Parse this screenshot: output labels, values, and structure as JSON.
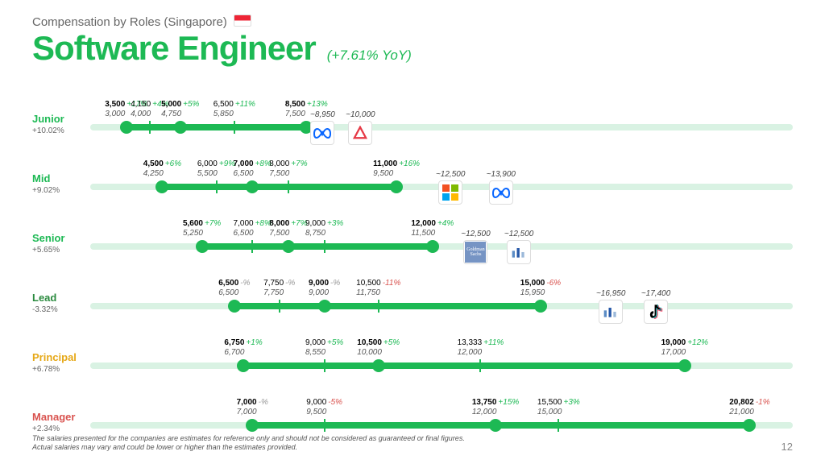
{
  "header": {
    "subtitle": "Compensation by Roles (Singapore)",
    "title": "Software Engineer",
    "yoy": "(+7.61% YoY)"
  },
  "scale": {
    "min": 2500,
    "max": 22000
  },
  "rows": [
    {
      "name": "Junior",
      "yoy": "+10.02%",
      "color": "c-junior",
      "seg": [
        3500,
        8500
      ],
      "points": [
        {
          "v": 3500,
          "pv": 3000,
          "pct": "+17%",
          "kind": "dot"
        },
        {
          "v": 4150,
          "pv": 4000,
          "pct": "+4%",
          "kind": "tick"
        },
        {
          "v": 5000,
          "pv": 4750,
          "pct": "+5%",
          "kind": "dot"
        },
        {
          "v": 6500,
          "pv": 5850,
          "pct": "+11%",
          "kind": "tick"
        },
        {
          "v": 8500,
          "pv": 7500,
          "pct": "+13%",
          "kind": "dot"
        }
      ],
      "logos": [
        {
          "approx": "~8,950",
          "pos": 8950,
          "icon": "meta"
        },
        {
          "approx": "~10,000",
          "pos": 10000,
          "icon": "triangle"
        }
      ]
    },
    {
      "name": "Mid",
      "yoy": "+9.02%",
      "color": "c-mid",
      "seg": [
        4500,
        11000
      ],
      "points": [
        {
          "v": 4500,
          "pv": 4250,
          "pct": "+6%",
          "kind": "dot"
        },
        {
          "v": 6000,
          "pv": 5500,
          "pct": "+9%",
          "kind": "tick"
        },
        {
          "v": 7000,
          "pv": 6500,
          "pct": "+8%",
          "kind": "dot"
        },
        {
          "v": 8000,
          "pv": 7500,
          "pct": "+7%",
          "kind": "tick"
        },
        {
          "v": 11000,
          "pv": 9500,
          "pct": "+16%",
          "kind": "dot"
        }
      ],
      "logos": [
        {
          "approx": "~12,500",
          "pos": 12500,
          "icon": "microsoft"
        },
        {
          "approx": "~13,900",
          "pos": 13900,
          "icon": "meta"
        }
      ]
    },
    {
      "name": "Senior",
      "yoy": "+5.65%",
      "color": "c-senior",
      "seg": [
        5600,
        12000
      ],
      "points": [
        {
          "v": 5600,
          "pv": 5250,
          "pct": "+7%",
          "kind": "dot"
        },
        {
          "v": 7000,
          "pv": 6500,
          "pct": "+8%",
          "kind": "tick"
        },
        {
          "v": 8000,
          "pv": 7500,
          "pct": "+7%",
          "kind": "dot"
        },
        {
          "v": 9000,
          "pv": 8750,
          "pct": "+3%",
          "kind": "tick"
        },
        {
          "v": 12000,
          "pv": 11500,
          "pct": "+4%",
          "kind": "dot"
        }
      ],
      "logos": [
        {
          "approx": "~12,500",
          "pos": 13200,
          "icon": "goldman"
        },
        {
          "approx": "~12,500",
          "pos": 14400,
          "icon": "indeed"
        }
      ]
    },
    {
      "name": "Lead",
      "yoy": "-3.32%",
      "color": "c-lead",
      "seg": [
        6500,
        15000
      ],
      "points": [
        {
          "v": 6500,
          "pv": 6500,
          "pct": "-%",
          "kind": "dot"
        },
        {
          "v": 7750,
          "pv": 7750,
          "pct": "-%",
          "kind": "tick"
        },
        {
          "v": 9000,
          "pv": 9000,
          "pct": "-%",
          "kind": "dot"
        },
        {
          "v": 10500,
          "pv": 11750,
          "pct": "-11%",
          "kind": "tick"
        },
        {
          "v": 15000,
          "pv": 15950,
          "pct": "-6%",
          "kind": "dot"
        }
      ],
      "logos": [
        {
          "approx": "~16,950",
          "pos": 16950,
          "icon": "indeed"
        },
        {
          "approx": "~17,400",
          "pos": 18200,
          "icon": "tiktok"
        }
      ]
    },
    {
      "name": "Principal",
      "yoy": "+6.78%",
      "color": "c-principal",
      "seg": [
        6750,
        19000
      ],
      "points": [
        {
          "v": 6750,
          "pv": 6700,
          "pct": "+1%",
          "kind": "dot"
        },
        {
          "v": 9000,
          "pv": 8550,
          "pct": "+5%",
          "kind": "tick"
        },
        {
          "v": 10500,
          "pv": 10000,
          "pct": "+5%",
          "kind": "dot"
        },
        {
          "v": 13333,
          "pv": 12000,
          "pct": "+11%",
          "kind": "tick"
        },
        {
          "v": 19000,
          "pv": 17000,
          "pct": "+12%",
          "kind": "dot"
        }
      ],
      "logos": []
    },
    {
      "name": "Manager",
      "yoy": "+2.34%",
      "color": "c-manager",
      "seg": [
        7000,
        20802
      ],
      "points": [
        {
          "v": 7000,
          "pv": 7000,
          "pct": "-%",
          "kind": "dot"
        },
        {
          "v": 9000,
          "pv": 9500,
          "pct": "-5%",
          "kind": "tick"
        },
        {
          "v": 13750,
          "pv": 12000,
          "pct": "+15%",
          "kind": "dot"
        },
        {
          "v": 15500,
          "pv": 15000,
          "pct": "+3%",
          "kind": "tick"
        },
        {
          "v": 20802,
          "pv": 21000,
          "pct": "-1%",
          "kind": "dot"
        }
      ],
      "logos": []
    }
  ],
  "footer": {
    "line1": "The salaries presented for the companies are estimates for reference only and should not be considered as guaranteed or final figures.",
    "line2": "Actual salaries may vary and could be lower or higher than the estimates provided.",
    "page": "12"
  },
  "colors": {
    "green": "#1db954",
    "track": "#d9f2e3"
  }
}
